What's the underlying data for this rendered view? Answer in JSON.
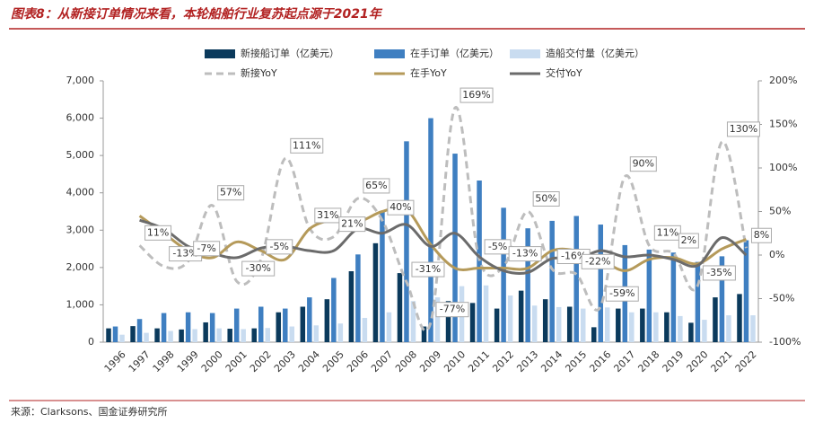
{
  "chart_data": {
    "type": "bar_line",
    "title": "图表8：从新接订单情况来看，本轮船舶行业复苏起点源于2021年",
    "source": "来源：Clarksons、国金证券研究所",
    "categories": [
      "1996",
      "1997",
      "1998",
      "1999",
      "2000",
      "2001",
      "2002",
      "2003",
      "2004",
      "2005",
      "2006",
      "2007",
      "2008",
      "2009",
      "2010",
      "2011",
      "2012",
      "2013",
      "2014",
      "2015",
      "2016",
      "2017",
      "2018",
      "2019",
      "2020",
      "2021",
      "2022"
    ],
    "ylim": [
      0,
      7000
    ],
    "yticks": [
      0,
      {
        "value": 1000,
        "label": "1,000"
      },
      {
        "value": 2000,
        "label": "2,000"
      },
      {
        "value": 3000,
        "label": "3,000"
      },
      {
        "value": 4000,
        "label": "4,000"
      },
      {
        "value": 5000,
        "label": "5,000"
      },
      {
        "value": 6000,
        "label": "6,000"
      },
      {
        "value": 7000,
        "label": "7,000"
      }
    ],
    "y2lim": [
      -100,
      200
    ],
    "y2ticks": [
      {
        "value": -100,
        "label": "-100%"
      },
      {
        "value": -50,
        "label": "-50%"
      },
      {
        "value": 0,
        "label": "0%"
      },
      {
        "value": 50,
        "label": "50%"
      },
      {
        "value": 100,
        "label": "100%"
      },
      {
        "value": 150,
        "label": "150%"
      },
      {
        "value": 200,
        "label": "200%"
      }
    ],
    "series": [
      {
        "name": "新接船订单（亿美元）",
        "kind": "bar",
        "color": "#0b3a5c",
        "values": [
          370,
          430,
          370,
          340,
          530,
          360,
          370,
          800,
          950,
          1150,
          1900,
          2650,
          1850,
          420,
          1100,
          1050,
          900,
          1380,
          1150,
          950,
          400,
          900,
          900,
          800,
          520,
          1200,
          1290
        ]
      },
      {
        "name": "在手订单（亿美元）",
        "kind": "bar",
        "color": "#3f7fc1",
        "values": [
          420,
          620,
          780,
          800,
          780,
          900,
          950,
          900,
          1200,
          1720,
          2350,
          3500,
          5380,
          6000,
          5050,
          4330,
          3600,
          3050,
          3250,
          3380,
          3150,
          2600,
          2480,
          2400,
          2150,
          2300,
          2730
        ]
      },
      {
        "name": "造船交付量（亿美元）",
        "kind": "bar",
        "color": "#c9dcf0",
        "values": [
          200,
          250,
          300,
          350,
          370,
          350,
          380,
          420,
          450,
          500,
          650,
          800,
          1100,
          1200,
          1500,
          1520,
          1250,
          980,
          940,
          900,
          930,
          800,
          800,
          700,
          600,
          720,
          720
        ]
      },
      {
        "name": "新接YoY",
        "kind": "line",
        "dash": true,
        "axis": "y2",
        "color": "#bdbdbd",
        "values": [
          null,
          11,
          -13,
          -7,
          57,
          -30,
          -5,
          111,
          31,
          21,
          65,
          40,
          -31,
          -77,
          169,
          -5,
          -13,
          50,
          -16,
          -22,
          -59,
          90,
          11,
          2,
          -35,
          130,
          8
        ],
        "value_labels": [
          null,
          "11%",
          "-13%",
          "-7%",
          "57%",
          "-30%",
          "-5%",
          "111%",
          "31%",
          "21%",
          "65%",
          "40%",
          "-31%",
          "-77%",
          "169%",
          "-5%",
          "-13%",
          "50%",
          "-16%",
          "-22%",
          "-59%",
          "90%",
          "11%",
          "2%",
          "-35%",
          "130%",
          "8%"
        ]
      },
      {
        "name": "在手YoY",
        "kind": "line",
        "axis": "y2",
        "color": "#b59a5a",
        "values": [
          null,
          45,
          25,
          5,
          -3,
          15,
          5,
          -5,
          30,
          40,
          38,
          50,
          52,
          12,
          -15,
          -15,
          -15,
          -15,
          5,
          5,
          -5,
          -18,
          -5,
          -3,
          -10,
          7,
          18
        ]
      },
      {
        "name": "交付YoY",
        "kind": "line",
        "axis": "y2",
        "color": "#6b6b6b",
        "values": [
          null,
          40,
          30,
          10,
          2,
          -3,
          8,
          10,
          5,
          5,
          30,
          25,
          35,
          10,
          25,
          -2,
          -18,
          -20,
          -4,
          -5,
          5,
          -2,
          0,
          -5,
          -12,
          20,
          0
        ]
      }
    ]
  }
}
